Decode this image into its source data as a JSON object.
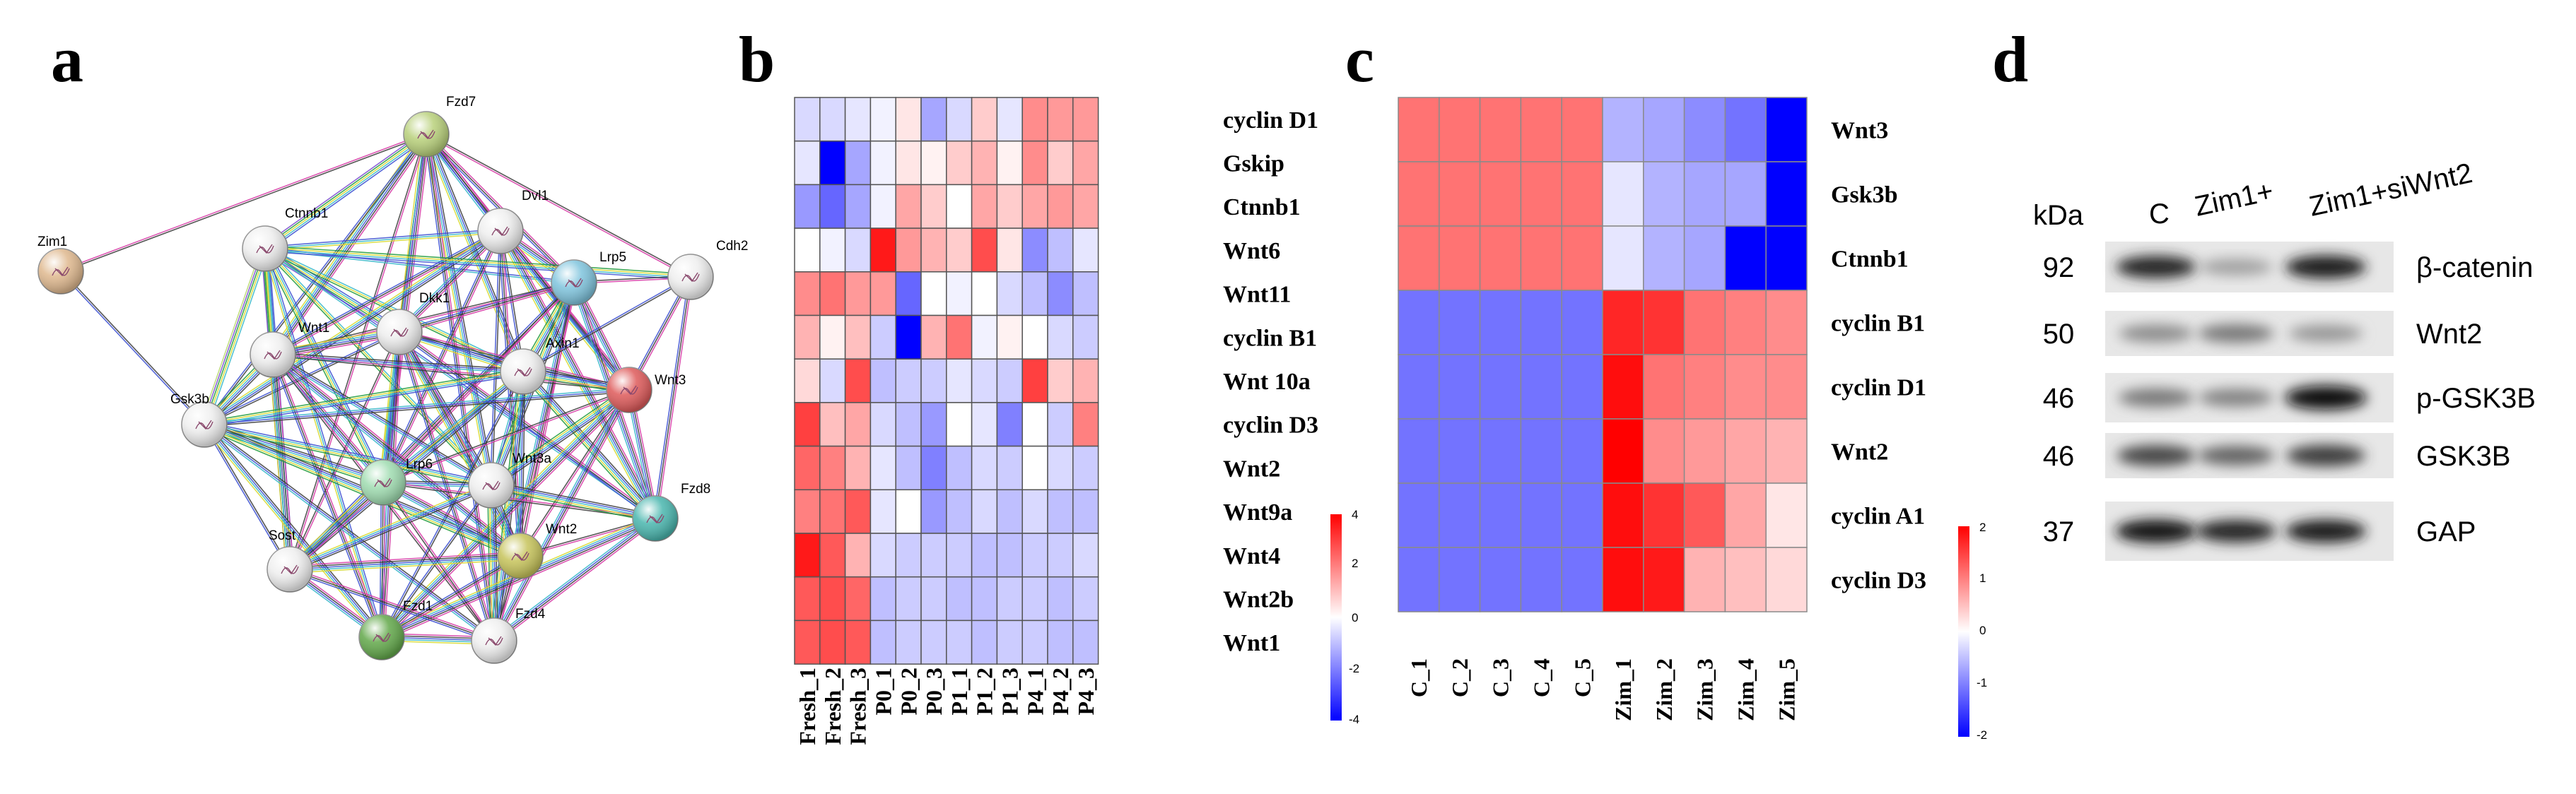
{
  "panels": {
    "a": {
      "label": "a",
      "nodes": [
        {
          "id": "Fzd7",
          "color": "#b8d07a"
        },
        {
          "id": "Zim1",
          "color": "#dfb88e"
        },
        {
          "id": "Ctnnb1",
          "color": "#eeeeee"
        },
        {
          "id": "Dvl1",
          "color": "#eeeeee"
        },
        {
          "id": "Cdh2",
          "color": "#eeeeee"
        },
        {
          "id": "Lrp5",
          "color": "#7fc4dd"
        },
        {
          "id": "Dkk1",
          "color": "#eeeeee"
        },
        {
          "id": "Wnt1",
          "color": "#eeeeee"
        },
        {
          "id": "Axin1",
          "color": "#eeeeee"
        },
        {
          "id": "Wnt3",
          "color": "#de5a5a"
        },
        {
          "id": "Gsk3b",
          "color": "#eeeeee"
        },
        {
          "id": "Lrp6",
          "color": "#9fdcb0"
        },
        {
          "id": "Wnt3a",
          "color": "#eeeeee"
        },
        {
          "id": "Fzd8",
          "color": "#49b6ae"
        },
        {
          "id": "Sost",
          "color": "#eeeeee"
        },
        {
          "id": "Wnt2",
          "color": "#c6c35a"
        },
        {
          "id": "Fzd1",
          "color": "#62a84a"
        },
        {
          "id": "Fzd4",
          "color": "#eeeeee"
        }
      ],
      "edge_colors": [
        "#d63aa6",
        "#3a3a3a",
        "#3b4fd1",
        "#36b7c9",
        "#d7d92e",
        "#1f9a3a",
        "#7a4bd0",
        "#b7d86d"
      ]
    },
    "b": {
      "label": "b",
      "colorbar_ticks": [
        "4",
        "2",
        "0",
        "-2",
        "-4"
      ]
    },
    "c": {
      "label": "c",
      "colorbar_ticks": [
        "2",
        "1",
        "0",
        "-1",
        "-2"
      ]
    },
    "d": {
      "label": "d",
      "kda_label": "kDa",
      "lanes": [
        "C",
        "Zim1+",
        "Zim1+siWnt2"
      ],
      "rows": [
        {
          "kda": "92",
          "protein": "β-catenin",
          "intensity": [
            0.85,
            0.25,
            0.9
          ]
        },
        {
          "kda": "50",
          "protein": "Wnt2",
          "intensity": [
            0.35,
            0.45,
            0.3
          ]
        },
        {
          "kda": "46",
          "protein": "p-GSK3B",
          "intensity": [
            0.45,
            0.4,
            1.0
          ]
        },
        {
          "kda": "46",
          "protein": "GSK3B",
          "intensity": [
            0.7,
            0.55,
            0.75
          ]
        },
        {
          "kda": "37",
          "protein": "GAP",
          "intensity": [
            0.95,
            0.85,
            0.9
          ]
        }
      ]
    }
  },
  "chart_data": [
    {
      "type": "heatmap",
      "panel": "b",
      "title": "",
      "rows": [
        "cyclin D1",
        "Gskip",
        "Ctnnb1",
        "Wnt6",
        "Wnt11",
        "cyclin B1",
        "Wnt 10a",
        "cyclin D3",
        "Wnt2",
        "Wnt9a",
        "Wnt4",
        "Wnt2b",
        "Wnt1"
      ],
      "columns": [
        "Fresh_1",
        "Fresh_2",
        "Fresh_3",
        "P0_1",
        "P0_2",
        "P0_3",
        "P1_1",
        "P1_2",
        "P1_3",
        "P4_1",
        "P4_2",
        "P4_3"
      ],
      "colorbar_range": [
        -4,
        4
      ],
      "values": [
        [
          -0.6,
          -0.6,
          -0.4,
          -0.2,
          0.4,
          -1.4,
          -0.6,
          0.8,
          -0.4,
          1.8,
          1.6,
          1.6
        ],
        [
          -0.4,
          -4.0,
          -1.4,
          -0.2,
          0.4,
          0.2,
          0.8,
          1.2,
          0.2,
          1.8,
          0.8,
          1.4
        ],
        [
          -1.6,
          -2.4,
          -1.4,
          -0.2,
          1.4,
          0.8,
          0.0,
          1.4,
          0.8,
          1.4,
          1.6,
          1.4
        ],
        [
          0.0,
          -0.2,
          -0.6,
          3.6,
          1.6,
          1.2,
          0.8,
          2.8,
          0.4,
          -1.8,
          -1.0,
          -0.4
        ],
        [
          1.8,
          2.2,
          1.6,
          1.6,
          -2.4,
          0.0,
          -0.2,
          0.0,
          -0.6,
          -1.0,
          -1.8,
          -1.0
        ],
        [
          1.2,
          0.2,
          1.0,
          -0.8,
          -4.0,
          1.2,
          2.2,
          -0.2,
          0.2,
          0.0,
          -0.6,
          -0.8
        ],
        [
          0.6,
          -0.6,
          2.8,
          -1.0,
          -0.8,
          -0.8,
          -0.4,
          -0.6,
          -0.8,
          3.0,
          0.8,
          1.2
        ],
        [
          3.0,
          1.0,
          1.4,
          -0.6,
          -1.0,
          -1.6,
          0.0,
          -0.4,
          -2.0,
          0.0,
          -0.8,
          2.0
        ],
        [
          2.4,
          2.0,
          1.2,
          -0.4,
          -1.0,
          -2.0,
          -1.0,
          -0.6,
          -0.8,
          0.0,
          -0.6,
          -0.8
        ],
        [
          2.0,
          2.2,
          2.6,
          -0.4,
          0.0,
          -1.6,
          -1.0,
          -0.6,
          -1.0,
          -0.6,
          -1.0,
          -1.0
        ],
        [
          3.6,
          2.6,
          1.2,
          -0.6,
          -0.8,
          -0.8,
          -0.8,
          -1.0,
          -1.0,
          -0.8,
          -0.8,
          -0.6
        ],
        [
          2.6,
          2.8,
          2.4,
          -1.0,
          -0.8,
          -0.8,
          -1.0,
          -1.0,
          -0.8,
          -0.8,
          -1.0,
          -0.8
        ],
        [
          2.6,
          2.8,
          2.6,
          -1.0,
          -0.8,
          -0.8,
          -0.8,
          -1.0,
          -0.8,
          -0.8,
          -1.0,
          -1.0
        ]
      ]
    },
    {
      "type": "heatmap",
      "panel": "c",
      "title": "",
      "rows": [
        "Wnt3",
        "Gsk3b",
        "Ctnnb1",
        "cyclin B1",
        "cyclin D1",
        "Wnt2",
        "cyclin A1",
        "cyclin D3"
      ],
      "columns": [
        "C_1",
        "C_2",
        "C_3",
        "C_4",
        "C_5",
        "Zim_1",
        "Zim_2",
        "Zim_3",
        "Zim_4",
        "Zim_5"
      ],
      "colorbar_range": [
        -2,
        2
      ],
      "values": [
        [
          1.1,
          1.1,
          1.1,
          1.1,
          1.1,
          -0.6,
          -0.7,
          -0.9,
          -1.1,
          -2.0
        ],
        [
          1.1,
          1.1,
          1.1,
          1.1,
          1.1,
          -0.2,
          -0.6,
          -0.7,
          -0.7,
          -2.0
        ],
        [
          1.1,
          1.1,
          1.1,
          1.1,
          1.1,
          -0.2,
          -0.6,
          -0.7,
          -2.0,
          -2.0
        ],
        [
          -1.1,
          -1.1,
          -1.1,
          -1.1,
          -1.1,
          1.7,
          1.6,
          1.1,
          1.0,
          0.9
        ],
        [
          -1.1,
          -1.1,
          -1.1,
          -1.1,
          -1.1,
          1.9,
          1.1,
          1.0,
          0.9,
          0.9
        ],
        [
          -1.1,
          -1.1,
          -1.1,
          -1.1,
          -1.1,
          2.0,
          0.9,
          0.8,
          0.7,
          0.6
        ],
        [
          -1.1,
          -1.1,
          -1.1,
          -1.1,
          -1.1,
          1.9,
          1.6,
          1.3,
          0.7,
          0.2
        ],
        [
          -1.1,
          -1.1,
          -1.1,
          -1.1,
          -1.1,
          1.9,
          1.8,
          0.6,
          0.5,
          0.3
        ]
      ]
    }
  ]
}
